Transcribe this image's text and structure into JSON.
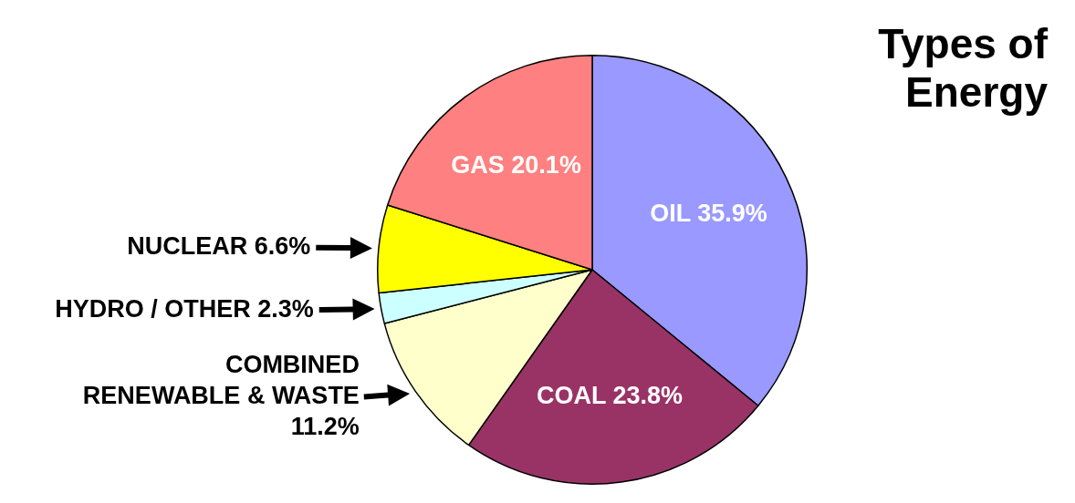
{
  "chart_data": {
    "type": "pie",
    "title": "Types of Energy",
    "categories": [
      "OIL",
      "COAL",
      "COMBINED RENEWABLE & WASTE",
      "HYDRO / OTHER",
      "NUCLEAR",
      "GAS"
    ],
    "values": [
      35.9,
      23.8,
      11.2,
      2.3,
      6.6,
      20.1
    ],
    "value_labels": [
      "35.9%",
      "23.8%",
      "11.2%",
      "2.3%",
      "6.6%",
      "20.1%"
    ],
    "colors": [
      "#9999ff",
      "#993366",
      "#ffffcc",
      "#ccffff",
      "#ffff00",
      "#ff8080"
    ]
  }
}
